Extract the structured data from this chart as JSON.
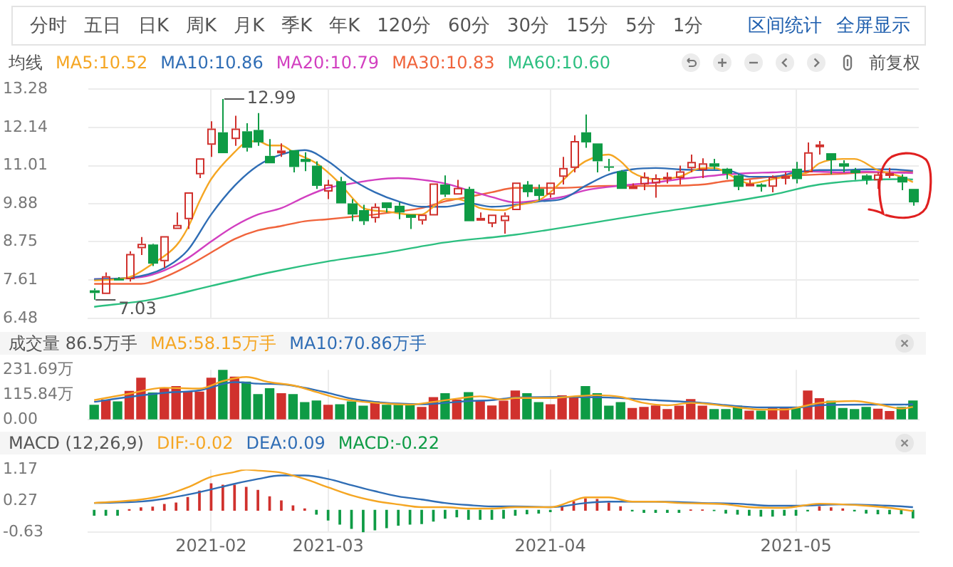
{
  "chart_data": [
    {
      "type": "other",
      "annotations": [
        "分时",
        "五日",
        "日K",
        "周K",
        "月K",
        "季K",
        "年K",
        "120分",
        "60分",
        "30分",
        "15分",
        "5分",
        "1分",
        "区间统计",
        "全屏显示"
      ]
    },
    {
      "type": "candlestick",
      "legend": "top left",
      "legend_title": "均线",
      "grid": true,
      "tick_labels": "y",
      "categories": [
        null,
        null,
        null,
        null,
        null,
        null,
        null,
        null,
        null,
        null,
        "2021-02",
        null,
        null,
        null,
        null,
        null,
        null,
        null,
        null,
        null,
        "2021-03",
        null,
        null,
        null,
        null,
        null,
        null,
        null,
        null,
        null,
        null,
        null,
        null,
        null,
        null,
        null,
        null,
        null,
        null,
        "2021-04",
        null,
        null,
        null,
        null,
        null,
        null,
        null,
        null,
        null,
        null,
        null,
        null,
        null,
        null,
        null,
        null,
        null,
        null,
        null,
        null,
        "2021-05",
        null,
        null,
        null,
        null,
        null,
        null,
        null,
        null,
        null,
        null
      ],
      "ylim": [
        6.48,
        13.28
      ],
      "yticks": [
        6.48,
        7.61,
        8.75,
        9.88,
        11.01,
        12.14,
        13.28
      ],
      "ohlc": [
        [
          7.31,
          7.37,
          7.03,
          7.23
        ],
        [
          7.2,
          7.84,
          7.17,
          7.73
        ],
        [
          7.66,
          7.7,
          7.55,
          7.6
        ],
        [
          7.64,
          8.47,
          7.57,
          8.39
        ],
        [
          8.56,
          8.89,
          8.36,
          8.69
        ],
        [
          8.67,
          8.69,
          8.03,
          8.1
        ],
        [
          8.17,
          8.92,
          7.97,
          8.92
        ],
        [
          9.13,
          9.62,
          9.1,
          9.25
        ],
        [
          9.42,
          10.22,
          9.13,
          10.22
        ],
        [
          10.75,
          11.23,
          10.64,
          11.23
        ],
        [
          11.63,
          12.33,
          11.27,
          12.11
        ],
        [
          12.0,
          12.99,
          11.38,
          11.38
        ],
        [
          11.8,
          12.49,
          11.6,
          12.11
        ],
        [
          12.03,
          12.27,
          11.43,
          11.54
        ],
        [
          12.07,
          12.57,
          11.6,
          11.7
        ],
        [
          11.3,
          11.8,
          11.05,
          11.08
        ],
        [
          11.44,
          11.67,
          11.27,
          11.46
        ],
        [
          11.47,
          11.47,
          10.81,
          10.97
        ],
        [
          11.21,
          11.41,
          10.85,
          11.12
        ],
        [
          11.01,
          11.14,
          10.32,
          10.41
        ],
        [
          10.24,
          10.59,
          10.02,
          10.45
        ],
        [
          10.55,
          10.68,
          9.89,
          9.89
        ],
        [
          9.89,
          10.02,
          9.36,
          9.56
        ],
        [
          9.69,
          9.85,
          9.25,
          9.36
        ],
        [
          9.45,
          9.89,
          9.32,
          9.79
        ],
        [
          9.92,
          9.92,
          9.62,
          9.75
        ],
        [
          9.82,
          9.92,
          9.42,
          9.62
        ],
        [
          9.56,
          9.56,
          9.13,
          9.46
        ],
        [
          9.38,
          9.56,
          9.26,
          9.56
        ],
        [
          9.53,
          10.48,
          9.53,
          10.48
        ],
        [
          10.45,
          10.72,
          10.08,
          10.15
        ],
        [
          10.15,
          10.59,
          10.15,
          10.35
        ],
        [
          10.32,
          10.38,
          9.36,
          9.36
        ],
        [
          9.45,
          9.62,
          9.4,
          9.46
        ],
        [
          9.29,
          9.56,
          9.18,
          9.56
        ],
        [
          9.36,
          9.62,
          8.99,
          9.53
        ],
        [
          9.69,
          10.51,
          9.66,
          10.51
        ],
        [
          10.45,
          10.55,
          10.08,
          10.22
        ],
        [
          10.32,
          10.45,
          9.98,
          10.11
        ],
        [
          10.15,
          10.51,
          10.06,
          10.51
        ],
        [
          10.68,
          11.27,
          10.45,
          10.94
        ],
        [
          10.94,
          11.91,
          10.81,
          11.74
        ],
        [
          12.0,
          12.53,
          11.54,
          11.7
        ],
        [
          11.67,
          11.67,
          10.81,
          11.14
        ],
        [
          10.99,
          11.21,
          10.85,
          10.97
        ],
        [
          10.84,
          10.88,
          10.32,
          10.32
        ],
        [
          10.36,
          10.48,
          10.31,
          10.4
        ],
        [
          10.45,
          10.81,
          10.28,
          10.68
        ],
        [
          10.48,
          10.75,
          10.06,
          10.64
        ],
        [
          10.63,
          10.81,
          10.48,
          10.68
        ],
        [
          10.64,
          11.01,
          10.45,
          10.84
        ],
        [
          10.93,
          11.34,
          10.81,
          11.12
        ],
        [
          10.88,
          11.23,
          10.64,
          11.08
        ],
        [
          11.08,
          11.21,
          10.9,
          10.98
        ],
        [
          10.92,
          10.94,
          10.61,
          10.77
        ],
        [
          10.72,
          10.75,
          10.28,
          10.38
        ],
        [
          10.4,
          10.59,
          10.35,
          10.48
        ],
        [
          10.45,
          10.48,
          10.24,
          10.38
        ],
        [
          10.38,
          10.72,
          10.22,
          10.68
        ],
        [
          10.62,
          10.81,
          10.45,
          10.71
        ],
        [
          10.92,
          11.12,
          10.48,
          10.61
        ],
        [
          10.81,
          11.7,
          10.81,
          11.41
        ],
        [
          11.58,
          11.74,
          11.34,
          11.64
        ],
        [
          11.38,
          11.38,
          10.75,
          11.17
        ],
        [
          11.08,
          11.17,
          10.81,
          10.98
        ],
        [
          10.88,
          10.94,
          10.59,
          10.79
        ],
        [
          10.72,
          10.75,
          10.45,
          10.59
        ],
        [
          10.57,
          10.81,
          10.32,
          10.75
        ],
        [
          10.77,
          10.94,
          10.64,
          10.79
        ],
        [
          10.68,
          10.75,
          10.28,
          10.51
        ],
        [
          10.32,
          10.32,
          9.82,
          9.92
        ]
      ],
      "colors": [
        "#0e9b45",
        "#d0312d",
        "#0e9b45",
        "#d0312d",
        "#d0312d",
        "#0e9b45",
        "#d0312d",
        "#d0312d",
        "#d0312d",
        "#d0312d",
        "#d0312d",
        "#0e9b45",
        "#d0312d",
        "#0e9b45",
        "#0e9b45",
        "#0e9b45",
        "#d0312d",
        "#0e9b45",
        "#0e9b45",
        "#0e9b45",
        "#d0312d",
        "#0e9b45",
        "#0e9b45",
        "#0e9b45",
        "#d0312d",
        "#0e9b45",
        "#0e9b45",
        "#0e9b45",
        "#d0312d",
        "#d0312d",
        "#0e9b45",
        "#d0312d",
        "#0e9b45",
        "#d0312d",
        "#d0312d",
        "#d0312d",
        "#d0312d",
        "#0e9b45",
        "#0e9b45",
        "#d0312d",
        "#d0312d",
        "#d0312d",
        "#0e9b45",
        "#0e9b45",
        "#0e9b45",
        "#0e9b45",
        "#d0312d",
        "#d0312d",
        "#d0312d",
        "#d0312d",
        "#d0312d",
        "#d0312d",
        "#d0312d",
        "#0e9b45",
        "#0e9b45",
        "#0e9b45",
        "#d0312d",
        "#0e9b45",
        "#d0312d",
        "#d0312d",
        "#0e9b45",
        "#d0312d",
        "#d0312d",
        "#0e9b45",
        "#0e9b45",
        "#0e9b45",
        "#0e9b45",
        "#d0312d",
        "#d0312d",
        "#0e9b45",
        "#0e9b45"
      ],
      "series": [
        {
          "type": "line",
          "name": "MA5:10.52",
          "color": "#f5a623",
          "values": [
            7.6,
            null,
            null,
            7.7,
            null,
            8.1,
            null,
            8.63,
            9.16,
            9.95,
            10.61,
            null,
            11.41,
            11.7,
            11.74,
            11.61,
            11.61,
            11.41,
            null,
            11.08,
            null,
            10.48,
            10.08,
            9.75,
            null,
            9.65,
            null,
            9.56,
            9.56,
            9.79,
            10.02,
            10.02,
            9.92,
            9.75,
            null,
            9.69,
            9.82,
            null,
            9.98,
            10.22,
            10.55,
            10.88,
            11.14,
            null,
            11.34,
            11.14,
            10.81,
            null,
            10.61,
            null,
            10.68,
            null,
            10.94,
            10.94,
            null,
            10.61,
            10.48,
            null,
            10.61,
            null,
            10.75,
            10.81,
            11.08,
            null,
            11.21,
            11.21,
            null,
            10.88,
            null,
            10.68,
            10.52
          ]
        },
        {
          "type": "line",
          "name": "MA10:10.86",
          "color": "#2f6db5",
          "values": [
            7.64,
            null,
            null,
            7.68,
            null,
            null,
            7.97,
            null,
            8.5,
            null,
            9.56,
            null,
            10.41,
            null,
            11.01,
            null,
            11.34,
            null,
            11.47,
            null,
            11.14,
            null,
            10.61,
            null,
            10.22,
            null,
            9.95,
            null,
            9.79,
            null,
            9.79,
            null,
            9.89,
            null,
            9.79,
            null,
            9.85,
            null,
            9.95,
            null,
            10.02,
            null,
            10.41,
            null,
            10.75,
            null,
            10.9,
            null,
            10.94,
            null,
            10.9,
            null,
            10.88,
            null,
            10.88,
            null,
            10.68,
            null,
            10.68,
            null,
            10.81,
            null,
            10.88,
            null,
            10.88,
            null,
            10.9,
            null,
            10.9,
            null,
            10.86
          ]
        },
        {
          "type": "line",
          "name": "MA20:10.79",
          "color": "#d23fc0",
          "values": [
            7.64,
            null,
            null,
            null,
            7.7,
            null,
            7.9,
            null,
            8.26,
            null,
            8.76,
            null,
            9.22,
            null,
            9.56,
            null,
            9.75,
            null,
            10.08,
            null,
            10.35,
            null,
            10.48,
            null,
            10.59,
            null,
            10.64,
            null,
            10.59,
            null,
            10.48,
            null,
            10.28,
            null,
            10.08,
            null,
            9.92,
            null,
            9.98,
            null,
            10.08,
            null,
            10.28,
            null,
            10.38,
            null,
            10.45,
            null,
            10.51,
            null,
            10.61,
            null,
            10.68,
            null,
            10.75,
            null,
            10.79,
            null,
            10.81,
            null,
            10.84,
            null,
            10.83,
            null,
            10.81,
            null,
            10.83,
            null,
            10.81,
            null,
            10.79
          ]
        },
        {
          "type": "line",
          "name": "MA30:10.83",
          "color": "#f0643c",
          "values": [
            7.5,
            null,
            null,
            null,
            7.5,
            null,
            7.7,
            null,
            8.03,
            null,
            8.43,
            null,
            8.83,
            null,
            9.09,
            null,
            9.22,
            null,
            9.36,
            null,
            9.42,
            null,
            9.49,
            null,
            9.56,
            null,
            9.65,
            null,
            9.75,
            null,
            9.95,
            null,
            10.08,
            null,
            10.22,
            null,
            10.35,
            null,
            null,
            null,
            10.35,
            null,
            null,
            null,
            10.41,
            null,
            null,
            null,
            10.41,
            null,
            null,
            null,
            10.45,
            null,
            10.55,
            null,
            10.61,
            null,
            10.68,
            null,
            10.72,
            null,
            10.75,
            null,
            10.77,
            null,
            10.81,
            null,
            10.81,
            null,
            10.83
          ]
        },
        {
          "type": "line",
          "name": "MA60:10.60",
          "color": "#2cbf80",
          "values": [
            6.82,
            null,
            null,
            null,
            null,
            7.04,
            null,
            null,
            null,
            null,
            7.44,
            null,
            null,
            null,
            null,
            7.84,
            null,
            null,
            null,
            null,
            8.17,
            null,
            null,
            null,
            null,
            8.43,
            null,
            null,
            null,
            null,
            8.73,
            null,
            null,
            null,
            null,
            null,
            8.96,
            null,
            null,
            null,
            null,
            null,
            null,
            null,
            null,
            null,
            null,
            9.56,
            null,
            null,
            null,
            null,
            null,
            null,
            null,
            null,
            null,
            null,
            10.15,
            null,
            null,
            null,
            10.45,
            null,
            null,
            null,
            null,
            null,
            null,
            10.61,
            10.6
          ]
        }
      ],
      "annotations": [
        "前复权",
        "12.99",
        "7.03"
      ]
    },
    {
      "type": "bar",
      "title": "成交量 86.5万手",
      "legend": "top left",
      "grid": "x",
      "tick_labels": "y",
      "categories": [
        null,
        null,
        null,
        null,
        null,
        null,
        null,
        null,
        null,
        null,
        "2021-02",
        null,
        null,
        null,
        null,
        null,
        null,
        null,
        null,
        null,
        "2021-03",
        null,
        null,
        null,
        null,
        null,
        null,
        null,
        null,
        null,
        null,
        null,
        null,
        null,
        null,
        null,
        null,
        null,
        null,
        "2021-04",
        null,
        null,
        null,
        null,
        null,
        null,
        null,
        null,
        null,
        null,
        null,
        null,
        null,
        null,
        null,
        null,
        null,
        null,
        null,
        null,
        "2021-05",
        null,
        null,
        null,
        null,
        null,
        null,
        null,
        null,
        null,
        null
      ],
      "ylim": [
        0,
        231.69
      ],
      "yticks": [
        {
          "value": 0,
          "label": "0.00"
        },
        {
          "value": 115.84,
          "label": "115.84万"
        },
        {
          "value": 231.69,
          "label": "231.69万"
        }
      ],
      "series": [
        {
          "type": "bar",
          "values": [
            66,
            90,
            82,
            131,
            193,
            124,
            147,
            154,
            128,
            128,
            193,
            231.69,
            198,
            174,
            116,
            144,
            120,
            116,
            79,
            86,
            66,
            69,
            82,
            62,
            82,
            66,
            66,
            69,
            56,
            102,
            120,
            90,
            125,
            85,
            63,
            85,
            133,
            120,
            79,
            69,
            110,
            105,
            154,
            120,
            62,
            79,
            51,
            56,
            63,
            46,
            62,
            93,
            62,
            46,
            46,
            62,
            39,
            39,
            51,
            51,
            54,
            133,
            97,
            85,
            51,
            46,
            56,
            48,
            37,
            56,
            86.5
          ],
          "colors": [
            "#0e9b45",
            "#d0312d",
            "#0e9b45",
            "#d0312d",
            "#d0312d",
            "#0e9b45",
            "#d0312d",
            "#d0312d",
            "#d0312d",
            "#d0312d",
            "#d0312d",
            "#0e9b45",
            "#d0312d",
            "#0e9b45",
            "#0e9b45",
            "#0e9b45",
            "#d0312d",
            "#0e9b45",
            "#0e9b45",
            "#0e9b45",
            "#d0312d",
            "#0e9b45",
            "#0e9b45",
            "#0e9b45",
            "#d0312d",
            "#0e9b45",
            "#0e9b45",
            "#0e9b45",
            "#d0312d",
            "#d0312d",
            "#0e9b45",
            "#d0312d",
            "#0e9b45",
            "#d0312d",
            "#d0312d",
            "#d0312d",
            "#d0312d",
            "#0e9b45",
            "#0e9b45",
            "#d0312d",
            "#d0312d",
            "#d0312d",
            "#0e9b45",
            "#0e9b45",
            "#0e9b45",
            "#0e9b45",
            "#d0312d",
            "#d0312d",
            "#d0312d",
            "#d0312d",
            "#d0312d",
            "#d0312d",
            "#d0312d",
            "#0e9b45",
            "#0e9b45",
            "#0e9b45",
            "#d0312d",
            "#0e9b45",
            "#d0312d",
            "#d0312d",
            "#0e9b45",
            "#d0312d",
            "#d0312d",
            "#0e9b45",
            "#0e9b45",
            "#0e9b45",
            "#0e9b45",
            "#d0312d",
            "#d0312d",
            "#0e9b45",
            "#0e9b45"
          ]
        },
        {
          "type": "line",
          "name": "MA5:58.15万手",
          "color": "#f5a623",
          "values": [
            90,
            null,
            null,
            120,
            null,
            null,
            148,
            null,
            null,
            144,
            null,
            179,
            null,
            198,
            null,
            174,
            null,
            159,
            null,
            128,
            null,
            97,
            null,
            82,
            null,
            74,
            null,
            69,
            null,
            82,
            null,
            97,
            null,
            108,
            null,
            93,
            100,
            null,
            null,
            100,
            null,
            108,
            null,
            113,
            null,
            105,
            null,
            77,
            null,
            66,
            null,
            77,
            null,
            69,
            null,
            56,
            null,
            46,
            null,
            46,
            null,
            66,
            77,
            null,
            null,
            86,
            null,
            71,
            null,
            51,
            58
          ]
        },
        {
          "type": "line",
          "name": "MA10:70.86万手",
          "color": "#2f6db5",
          "values": [
            82,
            null,
            null,
            105,
            null,
            null,
            124,
            null,
            null,
            136,
            null,
            null,
            174,
            null,
            167,
            null,
            164,
            null,
            148,
            null,
            124,
            null,
            97,
            null,
            82,
            null,
            74,
            null,
            71,
            null,
            77,
            null,
            86,
            null,
            90,
            null,
            102,
            null,
            null,
            null,
            105,
            null,
            null,
            null,
            102,
            null,
            null,
            null,
            90,
            null,
            null,
            null,
            77,
            null,
            null,
            62,
            null,
            56,
            null,
            null,
            56,
            null,
            66,
            null,
            null,
            null,
            69,
            null,
            null,
            69,
            71
          ]
        }
      ]
    },
    {
      "type": "bar",
      "title": "MACD (12,26,9)",
      "legend": "top left",
      "grid": "x",
      "categories": [
        null,
        null,
        null,
        null,
        null,
        null,
        null,
        null,
        null,
        null,
        "2021-02",
        null,
        null,
        null,
        null,
        null,
        null,
        null,
        null,
        null,
        "2021-03",
        null,
        null,
        null,
        null,
        null,
        null,
        null,
        null,
        null,
        null,
        null,
        null,
        null,
        null,
        null,
        null,
        null,
        null,
        "2021-04",
        null,
        null,
        null,
        null,
        null,
        null,
        null,
        null,
        null,
        null,
        null,
        null,
        null,
        null,
        null,
        null,
        null,
        null,
        null,
        null,
        "2021-05",
        null,
        null,
        null,
        null,
        null,
        null,
        null,
        null,
        null,
        null
      ],
      "ylim": [
        -0.63,
        1.17
      ],
      "yticks": [
        -0.63,
        0.27,
        1.17
      ],
      "series": [
        {
          "type": "line",
          "name": "DIF:-0.02",
          "color": "#f5a623",
          "values": [
            0.21,
            null,
            null,
            null,
            0.31,
            null,
            0.43,
            null,
            0.66,
            null,
            0.96,
            null,
            1.1,
            1.17,
            1.14,
            null,
            1.08,
            null,
            0.9,
            null,
            0.66,
            null,
            0.43,
            null,
            0.27,
            null,
            0.17,
            null,
            0.09,
            null,
            0.09,
            null,
            0.05,
            null,
            0.05,
            null,
            0.09,
            null,
            null,
            0.09,
            null,
            0.28,
            0.37,
            null,
            0.37,
            null,
            0.25,
            null,
            0.25,
            null,
            0.21,
            null,
            null,
            null,
            0.17,
            null,
            0.09,
            null,
            null,
            0.07,
            null,
            null,
            0.19,
            null,
            0.17,
            null,
            0.13,
            null,
            0.07,
            null,
            -0.02
          ]
        },
        {
          "type": "line",
          "name": "DEA:0.09",
          "color": "#2f6db5",
          "values": [
            0.21,
            null,
            null,
            null,
            0.25,
            null,
            0.33,
            null,
            0.45,
            null,
            0.6,
            null,
            0.76,
            null,
            0.9,
            null,
            1.0,
            null,
            1.0,
            null,
            0.9,
            null,
            0.72,
            null,
            0.55,
            null,
            0.4,
            null,
            0.31,
            null,
            0.21,
            null,
            0.15,
            null,
            0.11,
            null,
            0.11,
            null,
            null,
            0.09,
            null,
            null,
            0.21,
            null,
            0.25,
            null,
            null,
            null,
            0.25,
            null,
            null,
            null,
            0.21,
            null,
            null,
            0.19,
            null,
            null,
            0.13,
            null,
            0.13,
            null,
            null,
            null,
            0.17,
            null,
            null,
            null,
            0.13,
            null,
            0.09
          ]
        },
        {
          "type": "bar",
          "name": "MACD:-0.22",
          "color": "#0e9b45",
          "values": [
            -0.14,
            -0.14,
            -0.14,
            0.02,
            0.07,
            0.09,
            0.17,
            0.21,
            0.37,
            0.55,
            0.76,
            0.72,
            0.72,
            0.66,
            0.57,
            0.39,
            0.27,
            0.13,
            0.04,
            -0.11,
            -0.28,
            -0.4,
            -0.52,
            -0.63,
            -0.56,
            -0.5,
            -0.43,
            -0.4,
            -0.38,
            -0.31,
            -0.23,
            -0.19,
            -0.26,
            -0.26,
            -0.26,
            -0.23,
            -0.14,
            -0.1,
            -0.08,
            -0.04,
            0.1,
            0.25,
            0.33,
            0.31,
            0.21,
            0.1,
            -0.02,
            -0.06,
            -0.06,
            -0.06,
            -0.06,
            0.01,
            0.01,
            -0.01,
            -0.08,
            -0.11,
            -0.14,
            -0.17,
            -0.17,
            -0.14,
            -0.14,
            -0.02,
            0.1,
            0.07,
            0.04,
            -0.02,
            -0.08,
            -0.1,
            -0.1,
            -0.1,
            -0.22
          ],
          "colors": [
            "#0e9b45",
            "#0e9b45",
            "#0e9b45",
            "#d0312d",
            "#d0312d",
            "#d0312d",
            "#d0312d",
            "#d0312d",
            "#d0312d",
            "#d0312d",
            "#d0312d",
            "#d0312d",
            "#d0312d",
            "#d0312d",
            "#d0312d",
            "#d0312d",
            "#d0312d",
            "#d0312d",
            "#d0312d",
            "#0e9b45",
            "#0e9b45",
            "#0e9b45",
            "#0e9b45",
            "#0e9b45",
            "#0e9b45",
            "#0e9b45",
            "#0e9b45",
            "#0e9b45",
            "#0e9b45",
            "#0e9b45",
            "#0e9b45",
            "#0e9b45",
            "#0e9b45",
            "#0e9b45",
            "#0e9b45",
            "#0e9b45",
            "#0e9b45",
            "#0e9b45",
            "#0e9b45",
            "#0e9b45",
            "#d0312d",
            "#d0312d",
            "#d0312d",
            "#d0312d",
            "#d0312d",
            "#d0312d",
            "#0e9b45",
            "#0e9b45",
            "#0e9b45",
            "#0e9b45",
            "#0e9b45",
            "#d0312d",
            "#d0312d",
            "#0e9b45",
            "#0e9b45",
            "#0e9b45",
            "#0e9b45",
            "#0e9b45",
            "#0e9b45",
            "#0e9b45",
            "#0e9b45",
            "#0e9b45",
            "#d0312d",
            "#d0312d",
            "#d0312d",
            "#0e9b45",
            "#0e9b45",
            "#0e9b45",
            "#0e9b45",
            "#0e9b45",
            "#0e9b45"
          ]
        }
      ]
    }
  ]
}
